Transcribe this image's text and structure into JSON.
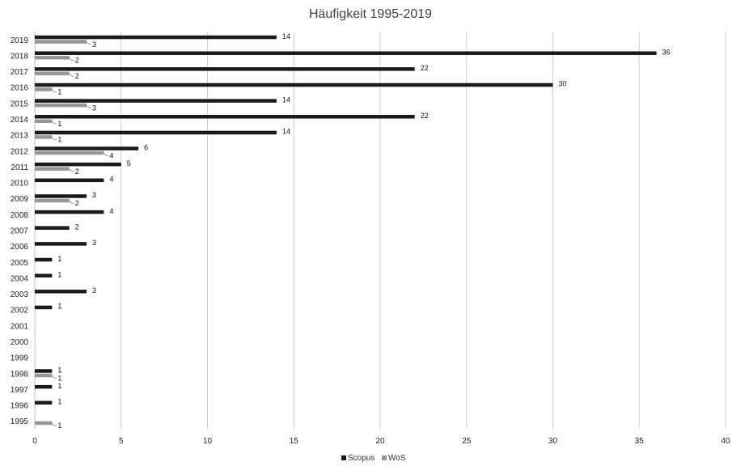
{
  "chart_data": {
    "type": "bar",
    "orientation": "horizontal",
    "title": "Häufigkeit 1995-2019",
    "xlabel": "",
    "ylabel": "",
    "xlim": [
      0,
      40
    ],
    "x_ticks": [
      0,
      5,
      10,
      15,
      20,
      25,
      30,
      35,
      40
    ],
    "grid": true,
    "legend": "bottom-center",
    "categories": [
      "2019",
      "2018",
      "2017",
      "2016",
      "2015",
      "2014",
      "2013",
      "2012",
      "2011",
      "2010",
      "2009",
      "2008",
      "2007",
      "2006",
      "2005",
      "2004",
      "2003",
      "2002",
      "2001",
      "2000",
      "1999",
      "1998",
      "1997",
      "1996",
      "1995"
    ],
    "series": [
      {
        "name": "Scopus",
        "color": "#1a1a1a",
        "values": [
          14,
          36,
          22,
          30,
          14,
          22,
          14,
          6,
          5,
          4,
          3,
          4,
          2,
          3,
          1,
          1,
          3,
          1,
          null,
          null,
          null,
          1,
          1,
          1,
          null
        ]
      },
      {
        "name": "WoS",
        "color": "#969696",
        "values": [
          3,
          2,
          2,
          1,
          3,
          1,
          1,
          4,
          2,
          null,
          2,
          null,
          null,
          null,
          null,
          null,
          null,
          null,
          null,
          null,
          null,
          1,
          null,
          null,
          1
        ]
      }
    ]
  }
}
